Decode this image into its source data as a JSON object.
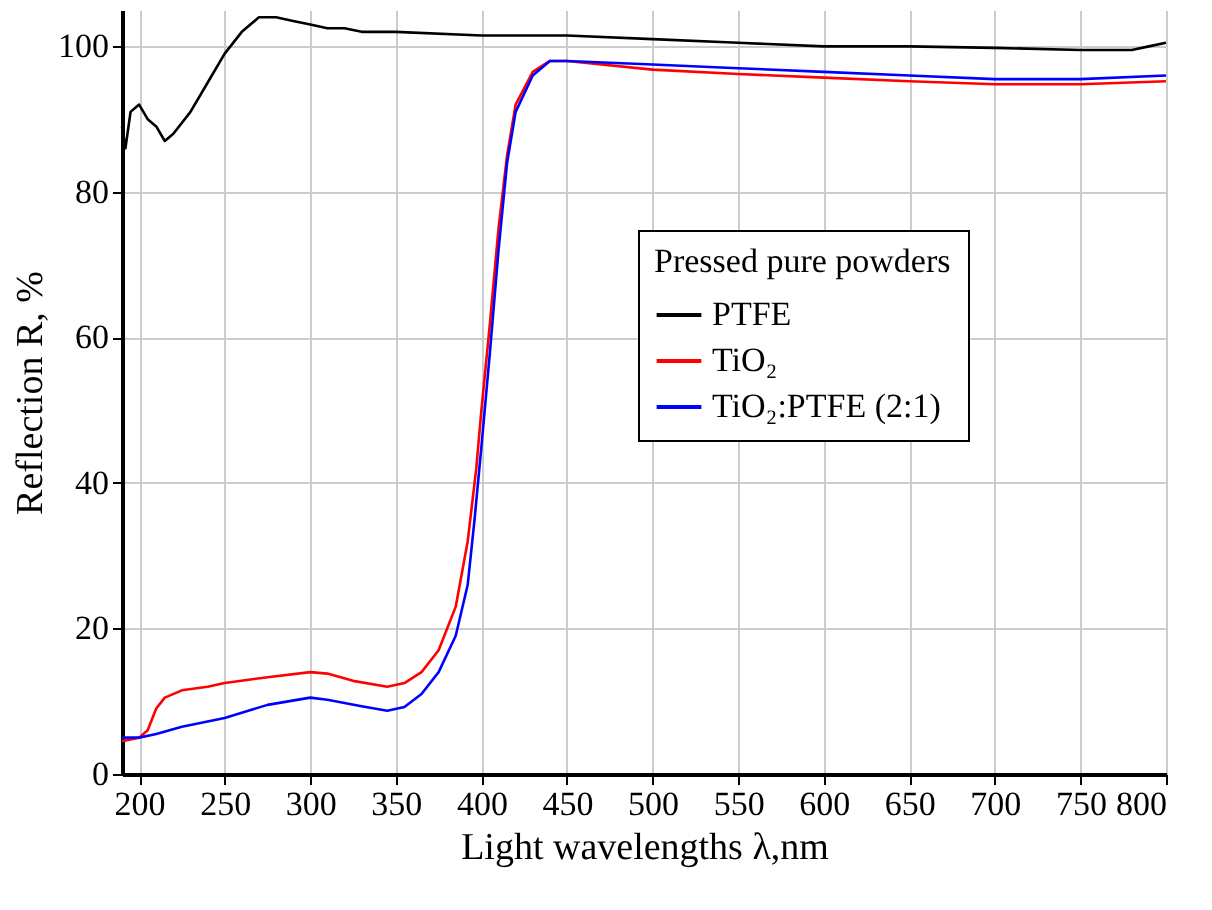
{
  "chart_data": {
    "type": "line",
    "xlabel": "Light wavelengths λ,nm",
    "ylabel": "Reflection R, %",
    "legend_title": "Pressed pure powders",
    "legend": "right",
    "grid": true,
    "line_style": "solid",
    "marker": "none",
    "xlim": [
      190,
      800
    ],
    "xticks": [
      200,
      250,
      300,
      350,
      400,
      450,
      500,
      550,
      600,
      650,
      700,
      750,
      800
    ],
    "ylim": [
      0,
      105
    ],
    "yticks": [
      0,
      20,
      40,
      60,
      80,
      100
    ],
    "series": [
      {
        "name": "PTFE",
        "color": "#000000",
        "x": [
          190,
          192,
          195,
          200,
          205,
          210,
          215,
          220,
          230,
          240,
          250,
          260,
          270,
          280,
          290,
          300,
          310,
          320,
          330,
          340,
          350,
          400,
          450,
          500,
          550,
          600,
          650,
          700,
          750,
          780,
          790,
          800
        ],
        "values": [
          89,
          86,
          91,
          92,
          90,
          89,
          87,
          88,
          91,
          95,
          99,
          102,
          104,
          104,
          103.5,
          103,
          102.5,
          102.5,
          102,
          102,
          102,
          101.5,
          101.5,
          101,
          100.5,
          100,
          100,
          99.8,
          99.5,
          99.5,
          100,
          100.5
        ]
      },
      {
        "name": "TiO₂",
        "color": "#ff0000",
        "x": [
          190,
          200,
          205,
          210,
          215,
          225,
          240,
          250,
          275,
          300,
          310,
          325,
          345,
          355,
          365,
          375,
          385,
          392,
          397,
          400,
          405,
          410,
          415,
          420,
          430,
          440,
          450,
          500,
          550,
          600,
          650,
          700,
          750,
          800
        ],
        "values": [
          4.5,
          5,
          6,
          9,
          10.5,
          11.5,
          12,
          12.5,
          13.3,
          14,
          13.8,
          12.8,
          12,
          12.5,
          14,
          17,
          23,
          32,
          42,
          50,
          62,
          75,
          85,
          92,
          96.5,
          98,
          98,
          96.8,
          96.2,
          95.7,
          95.2,
          94.8,
          94.8,
          95.2
        ]
      },
      {
        "name": "TiO₂:PTFE (2:1)",
        "color": "#0000ff",
        "x": [
          190,
          200,
          210,
          225,
          250,
          275,
          300,
          310,
          330,
          345,
          355,
          365,
          375,
          385,
          392,
          396,
          400,
          405,
          410,
          415,
          420,
          430,
          440,
          450,
          500,
          550,
          600,
          650,
          700,
          750,
          800
        ],
        "values": [
          5,
          5,
          5.5,
          6.5,
          7.7,
          9.5,
          10.5,
          10.2,
          9.3,
          8.7,
          9.2,
          11,
          14,
          19,
          26,
          35,
          45,
          58,
          72,
          84,
          91,
          96,
          98,
          98,
          97.5,
          97,
          96.5,
          96,
          95.5,
          95.5,
          96
        ]
      }
    ]
  }
}
